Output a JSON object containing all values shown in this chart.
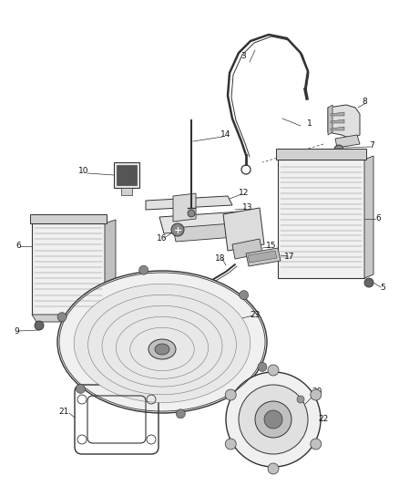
{
  "background_color": "#ffffff",
  "line_color": "#333333",
  "label_color": "#111111",
  "label_fontsize": 6.5,
  "leader_lw": 0.5,
  "part_lw": 0.8
}
